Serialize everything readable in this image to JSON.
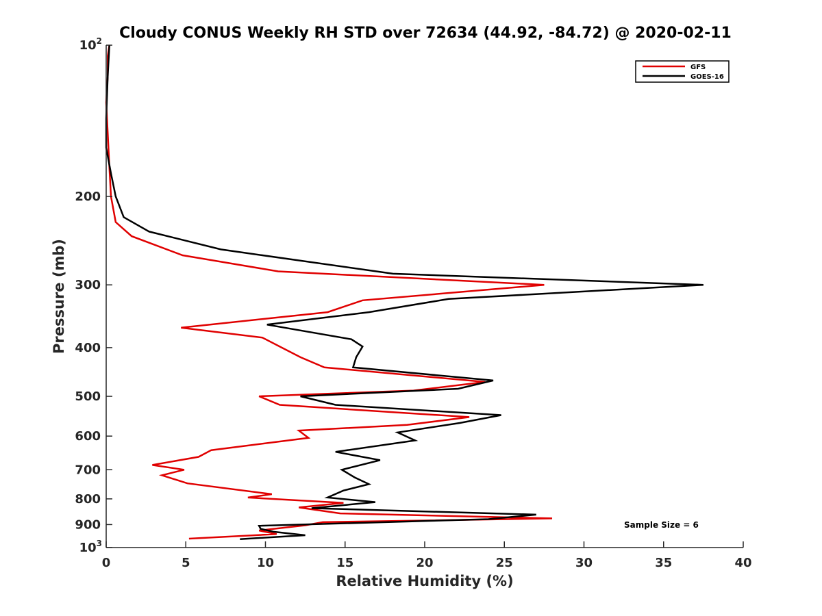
{
  "chart_data": {
    "type": "line",
    "title": "Cloudy CONUS Weekly RH STD over 72634 (44.92, -84.72) @ 2020-02-11",
    "xlabel": "Relative Humidity (%)",
    "ylabel": "Pressure (mb)",
    "xlim": [
      0,
      40
    ],
    "ylim": [
      100,
      1000
    ],
    "y_scale": "log",
    "y_reversed": true,
    "grid": false,
    "legend_position": "top-right",
    "x_ticks": [
      "0",
      "5",
      "10",
      "15",
      "20",
      "25",
      "30",
      "35",
      "40"
    ],
    "y_ticks": [
      {
        "value": 100,
        "base": "10",
        "exp": "2"
      },
      {
        "value": 200,
        "label": "200"
      },
      {
        "value": 300,
        "label": "300"
      },
      {
        "value": 400,
        "label": "400"
      },
      {
        "value": 500,
        "label": "500"
      },
      {
        "value": 600,
        "label": "600"
      },
      {
        "value": 700,
        "label": "700"
      },
      {
        "value": 800,
        "label": "800"
      },
      {
        "value": 900,
        "label": "900"
      },
      {
        "value": 1000,
        "base": "10",
        "exp": "3"
      }
    ],
    "series": [
      {
        "name": "GFS",
        "color": "#e00000",
        "x": [
          0.2,
          0.1,
          0.1,
          0.0,
          0.1,
          0.2,
          0.3,
          0.6,
          1.6,
          4.8,
          10.8,
          27.5,
          16.1,
          13.9,
          4.7,
          9.8,
          12.2,
          13.7,
          23.8,
          19.3,
          9.6,
          10.9,
          22.8,
          18.9,
          12.1,
          12.7,
          6.6,
          5.8,
          2.9,
          4.9,
          3.5,
          5.1,
          10.4,
          8.9,
          14.9,
          12.1,
          14.7,
          28.0,
          13.6,
          12.5,
          9.6,
          10.7,
          5.2
        ],
        "y": [
          100,
          105,
          115,
          130,
          150,
          175,
          200,
          225,
          240,
          262,
          282,
          300,
          322,
          340,
          365,
          382,
          418,
          438,
          468,
          487,
          500,
          520,
          550,
          570,
          585,
          605,
          640,
          660,
          685,
          700,
          718,
          745,
          783,
          795,
          815,
          832,
          855,
          875,
          890,
          903,
          925,
          940,
          960
        ]
      },
      {
        "name": "GOES-16",
        "color": "#000000",
        "x": [
          0.2,
          0.1,
          0.0,
          0.0,
          0.3,
          0.6,
          1.1,
          2.7,
          7.2,
          18.0,
          37.5,
          21.5,
          16.5,
          10.1,
          15.4,
          16.1,
          15.7,
          15.5,
          24.3,
          22.1,
          12.2,
          14.4,
          24.8,
          22.2,
          18.3,
          19.4,
          14.4,
          17.2,
          14.8,
          15.6,
          16.5,
          14.9,
          13.9,
          16.9,
          12.9,
          27.0,
          24.0,
          9.6,
          9.7,
          10.5,
          12.5,
          8.4
        ],
        "y": [
          100,
          115,
          140,
          160,
          180,
          200,
          220,
          235,
          255,
          285,
          300,
          320,
          340,
          360,
          385,
          398,
          418,
          438,
          465,
          483,
          500,
          520,
          545,
          565,
          590,
          612,
          645,
          670,
          700,
          725,
          748,
          770,
          795,
          812,
          835,
          860,
          878,
          905,
          918,
          930,
          945,
          962
        ]
      }
    ]
  },
  "legend": {
    "items": [
      {
        "label": "GFS",
        "color": "#e00000"
      },
      {
        "label": "GOES-16",
        "color": "#000000"
      }
    ]
  },
  "annotation": {
    "text": "Sample Size = 6"
  }
}
